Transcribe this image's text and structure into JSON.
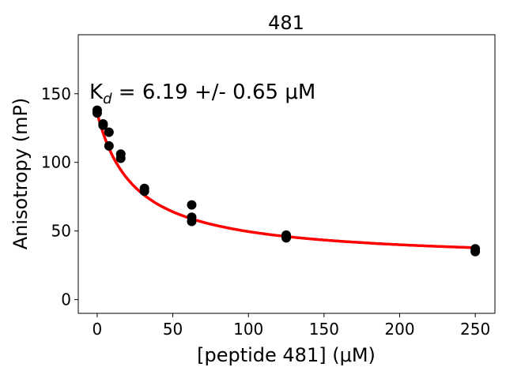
{
  "chart_data": {
    "type": "scatter",
    "title": "481",
    "xlabel": "[peptide 481] (μM)",
    "ylabel": "Anisotropy (mP)",
    "xlim": [
      -12.5,
      263
    ],
    "ylim": [
      -10,
      193
    ],
    "xticks": [
      0,
      50,
      100,
      150,
      200,
      250
    ],
    "yticks": [
      0,
      50,
      100,
      150
    ],
    "grid": false,
    "annotation": {
      "prefix": "K",
      "sub": "d",
      "text": " = 6.19 +/- 0.65 μM"
    },
    "series": [
      {
        "name": "data",
        "color": "#000000",
        "points": [
          [
            0,
            138
          ],
          [
            0,
            136
          ],
          [
            3.9,
            128
          ],
          [
            3.9,
            127
          ],
          [
            7.8,
            122
          ],
          [
            7.8,
            112
          ],
          [
            15.6,
            106
          ],
          [
            15.6,
            103
          ],
          [
            31.25,
            81
          ],
          [
            31.25,
            79
          ],
          [
            62.5,
            69
          ],
          [
            62.5,
            60
          ],
          [
            62.5,
            57
          ],
          [
            125,
            47
          ],
          [
            125,
            45
          ],
          [
            250,
            37
          ],
          [
            250,
            35
          ]
        ]
      },
      {
        "name": "fit",
        "color": "#ff0000",
        "model": {
          "bottom": 28,
          "top": 136,
          "half": 25
        }
      }
    ]
  }
}
